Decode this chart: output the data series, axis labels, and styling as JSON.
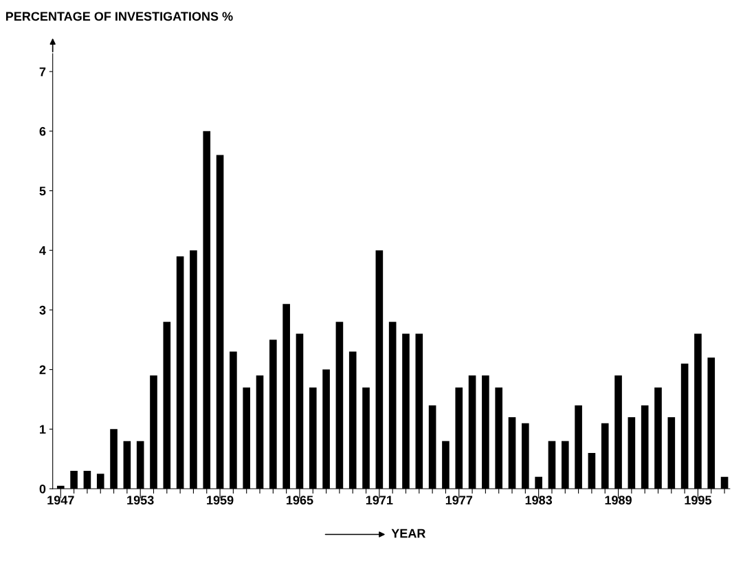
{
  "chart_data": {
    "type": "bar",
    "ylabel": "PERCENTAGE OF INVESTIGATIONS %",
    "xlabel": "YEAR",
    "categories": [
      "1947",
      null,
      null,
      null,
      null,
      null,
      "1953",
      null,
      null,
      null,
      null,
      null,
      "1959",
      null,
      null,
      null,
      null,
      null,
      "1965",
      null,
      null,
      null,
      null,
      null,
      "1971",
      null,
      null,
      null,
      null,
      null,
      "1977",
      null,
      null,
      null,
      null,
      null,
      "1983",
      null,
      null,
      null,
      null,
      null,
      "1989",
      null,
      null,
      null,
      null,
      null,
      "1995",
      null,
      null
    ],
    "values": [
      0.05,
      0.3,
      0.3,
      0.25,
      1.0,
      0.8,
      0.8,
      1.9,
      2.8,
      3.9,
      4.0,
      6.0,
      5.6,
      2.3,
      1.7,
      1.9,
      2.5,
      3.1,
      2.6,
      1.7,
      2.0,
      2.8,
      2.3,
      1.7,
      4.0,
      2.8,
      2.6,
      2.6,
      1.4,
      0.8,
      1.7,
      1.9,
      1.9,
      1.7,
      1.2,
      1.1,
      0.2,
      0.8,
      0.8,
      1.4,
      0.6,
      1.1,
      1.9,
      1.2,
      1.4,
      1.7,
      1.2,
      2.1,
      2.6,
      2.2,
      0.2
    ],
    "color": "#000000",
    "ylim": [
      0,
      7.3
    ],
    "yticks": [
      0,
      1,
      2,
      3,
      4,
      5,
      6,
      7
    ],
    "grid": false
  }
}
